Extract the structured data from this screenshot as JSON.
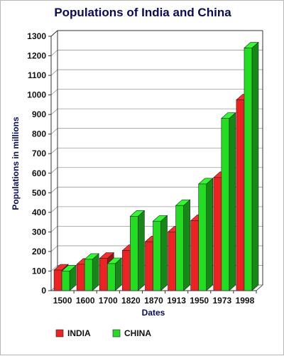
{
  "chart_data": {
    "type": "bar",
    "title": "Populations of India and China",
    "xlabel": "Dates",
    "ylabel": "Populations in millions",
    "categories": [
      "1500",
      "1600",
      "1700",
      "1820",
      "1870",
      "1913",
      "1950",
      "1973",
      "1998"
    ],
    "series": [
      {
        "name": "INDIA",
        "color": "#ee2222",
        "values": [
          105,
          135,
          165,
          205,
          250,
          300,
          358,
          578,
          975
        ]
      },
      {
        "name": "CHINA",
        "color": "#22dd22",
        "values": [
          100,
          160,
          138,
          380,
          355,
          435,
          545,
          880,
          1240
        ]
      }
    ],
    "ylim": [
      0,
      1300
    ],
    "yticks": [
      0,
      100,
      200,
      300,
      400,
      500,
      600,
      700,
      800,
      900,
      1000,
      1100,
      1200,
      1300
    ],
    "grid": true,
    "legend_position": "bottom-left",
    "style": "3d"
  }
}
